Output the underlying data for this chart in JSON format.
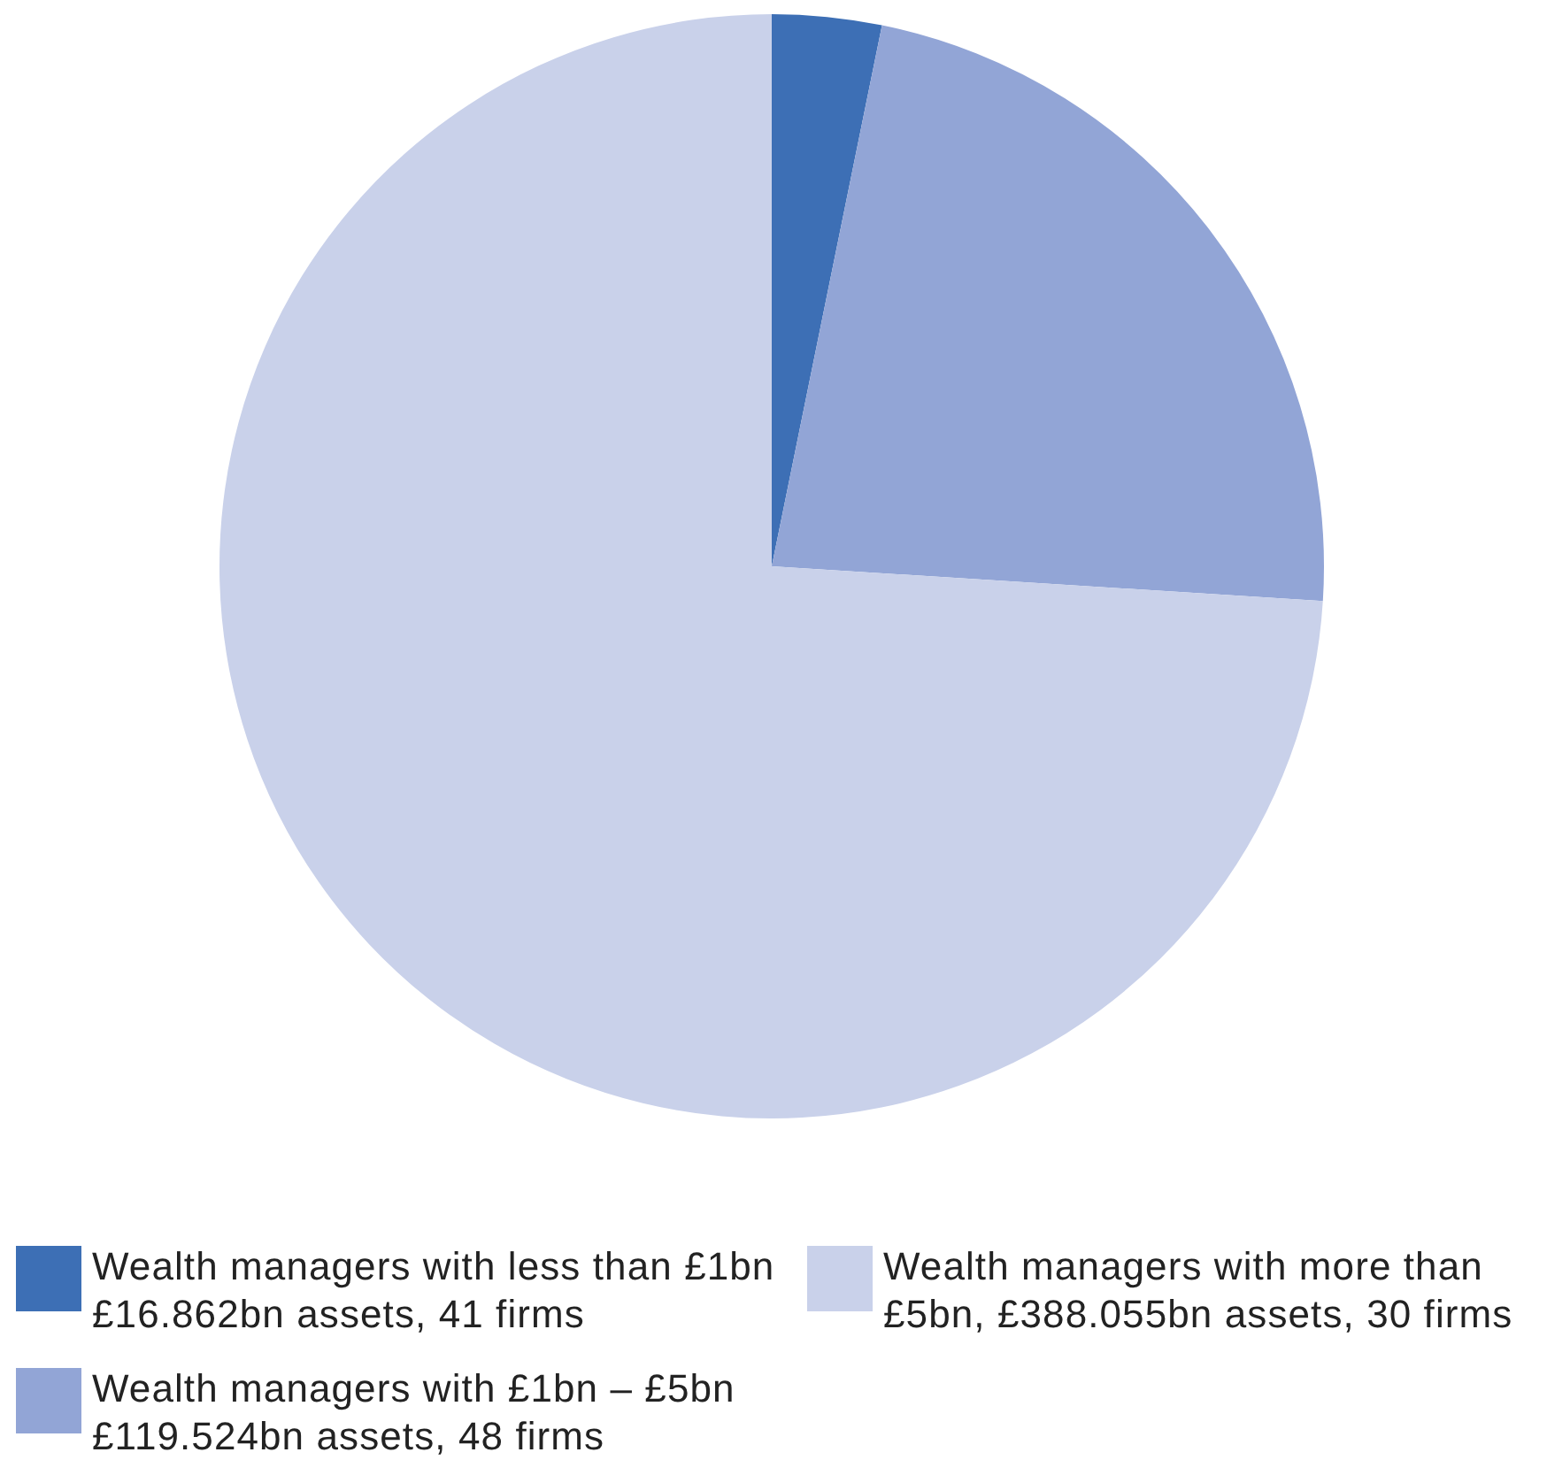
{
  "chart_data": {
    "type": "pie",
    "categories": [
      "Wealth managers with less than £1bn\n£16.862bn assets, 41 firms",
      "Wealth managers with £1bn – £5bn\n£119.524bn assets, 48 firms",
      "Wealth managers with more than\n£5bn, £388.055bn assets, 30 firms"
    ],
    "values": [
      3.2,
      22.8,
      74.0
    ],
    "colors": [
      "#3d6fb5",
      "#92a5d6",
      "#c9d1ea"
    ],
    "legend": "bottom"
  }
}
